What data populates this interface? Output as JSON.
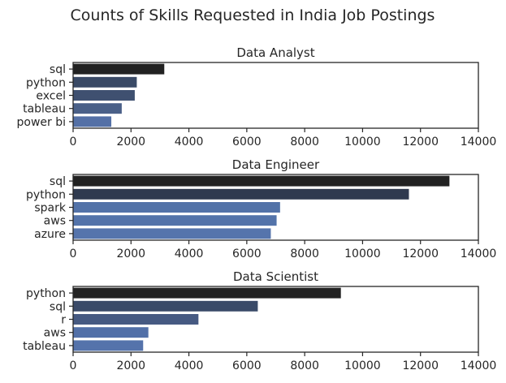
{
  "chart_data": {
    "type": "bar",
    "orientation": "horizontal",
    "suptitle": "Counts of Skills Requested in India Job Postings",
    "xlim": [
      0,
      14000
    ],
    "xticks": [
      0,
      2000,
      4000,
      6000,
      8000,
      10000,
      12000,
      14000
    ],
    "grid": false,
    "legend": "none",
    "palette": "dark blue gradient, darkest for largest value",
    "panels": [
      {
        "title": "Data Analyst",
        "categories": [
          "sql",
          "python",
          "excel",
          "tableau",
          "power bi"
        ],
        "values": [
          3150,
          2200,
          2130,
          1680,
          1320
        ],
        "colors": [
          "#222222",
          "#3a4a66",
          "#3f5070",
          "#4a6088",
          "#5470a6"
        ]
      },
      {
        "title": "Data Engineer",
        "categories": [
          "sql",
          "python",
          "spark",
          "aws",
          "azure"
        ],
        "values": [
          13000,
          11600,
          7150,
          7030,
          6830
        ],
        "colors": [
          "#222222",
          "#2f3a4f",
          "#5272a8",
          "#5373aa",
          "#5574ac"
        ]
      },
      {
        "title": "Data Scientist",
        "categories": [
          "python",
          "sql",
          "r",
          "aws",
          "tableau"
        ],
        "values": [
          9250,
          6380,
          4330,
          2600,
          2420
        ],
        "colors": [
          "#222222",
          "#3a4a68",
          "#465a82",
          "#5270a8",
          "#5573ab"
        ]
      }
    ]
  }
}
